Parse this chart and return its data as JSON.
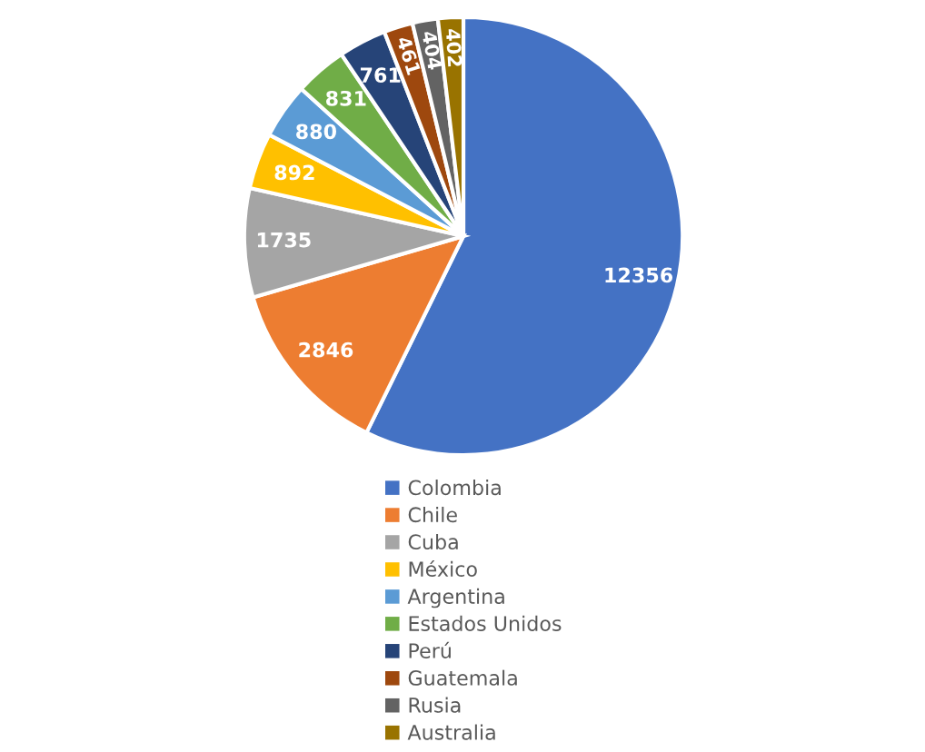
{
  "chart_data": {
    "type": "pie",
    "categories": [
      "Colombia",
      "Chile",
      "Cuba",
      "México",
      "Argentina",
      "Estados Unidos",
      "Perú",
      "Guatemala",
      "Rusia",
      "Australia"
    ],
    "values": [
      12356,
      2846,
      1735,
      892,
      880,
      831,
      761,
      461,
      404,
      402
    ],
    "colors": [
      "#4472c4",
      "#ed7d31",
      "#a5a5a5",
      "#ffc000",
      "#5b9bd5",
      "#70ad47",
      "#264478",
      "#9e480e",
      "#636363",
      "#997300"
    ],
    "data_labels": true,
    "legend": "bottom"
  }
}
